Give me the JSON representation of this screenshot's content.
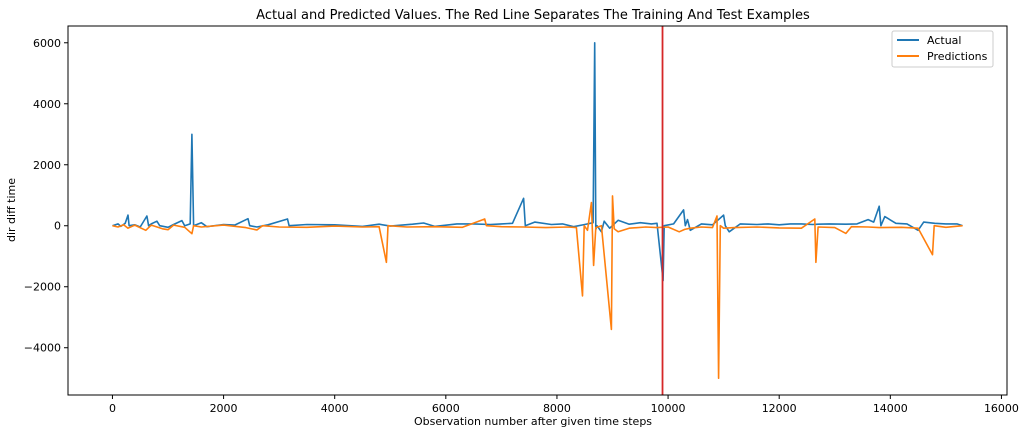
{
  "chart_data": {
    "type": "line",
    "title": "Actual and Predicted Values. The Red Line Separates The Training And Test Examples",
    "xlabel": "Observation number after given time steps",
    "ylabel": "dir diff time",
    "xlim": [
      -800,
      16100
    ],
    "ylim": [
      -5550,
      6550
    ],
    "xticks": [
      0,
      2000,
      4000,
      6000,
      8000,
      10000,
      12000,
      14000,
      16000
    ],
    "yticks": [
      -4000,
      -2000,
      0,
      2000,
      4000,
      6000
    ],
    "grid": false,
    "legend_position": "top-right",
    "split_line": {
      "x": 9900,
      "color": "#d62728"
    },
    "series": [
      {
        "name": "Actual",
        "color": "#1f77b4",
        "points": [
          [
            0,
            0
          ],
          [
            100,
            60
          ],
          [
            150,
            -20
          ],
          [
            230,
            80
          ],
          [
            280,
            350
          ],
          [
            300,
            0
          ],
          [
            400,
            30
          ],
          [
            500,
            -40
          ],
          [
            620,
            320
          ],
          [
            650,
            0
          ],
          [
            700,
            60
          ],
          [
            800,
            150
          ],
          [
            850,
            0
          ],
          [
            1000,
            -50
          ],
          [
            1100,
            40
          ],
          [
            1250,
            170
          ],
          [
            1300,
            0
          ],
          [
            1400,
            60
          ],
          [
            1430,
            3000
          ],
          [
            1460,
            0
          ],
          [
            1600,
            100
          ],
          [
            1700,
            -30
          ],
          [
            2000,
            40
          ],
          [
            2200,
            20
          ],
          [
            2440,
            230
          ],
          [
            2470,
            0
          ],
          [
            2600,
            -40
          ],
          [
            2800,
            30
          ],
          [
            3150,
            220
          ],
          [
            3180,
            0
          ],
          [
            3500,
            40
          ],
          [
            4000,
            30
          ],
          [
            4500,
            -20
          ],
          [
            4800,
            50
          ],
          [
            5000,
            -10
          ],
          [
            5400,
            50
          ],
          [
            5600,
            90
          ],
          [
            5800,
            -20
          ],
          [
            6200,
            60
          ],
          [
            6500,
            60
          ],
          [
            6800,
            40
          ],
          [
            7000,
            60
          ],
          [
            7200,
            80
          ],
          [
            7400,
            900
          ],
          [
            7430,
            0
          ],
          [
            7600,
            120
          ],
          [
            7900,
            40
          ],
          [
            8100,
            60
          ],
          [
            8300,
            -30
          ],
          [
            8500,
            40
          ],
          [
            8650,
            100
          ],
          [
            8680,
            6000
          ],
          [
            8700,
            -120
          ],
          [
            8720,
            0
          ],
          [
            8800,
            -200
          ],
          [
            8850,
            150
          ],
          [
            8950,
            -80
          ],
          [
            9100,
            180
          ],
          [
            9300,
            50
          ],
          [
            9500,
            100
          ],
          [
            9700,
            60
          ],
          [
            9800,
            80
          ],
          [
            9910,
            -1800
          ],
          [
            9930,
            0
          ],
          [
            10100,
            60
          ],
          [
            10280,
            520
          ],
          [
            10310,
            0
          ],
          [
            10350,
            200
          ],
          [
            10400,
            -150
          ],
          [
            10600,
            60
          ],
          [
            10800,
            30
          ],
          [
            11000,
            350
          ],
          [
            11030,
            0
          ],
          [
            11100,
            -200
          ],
          [
            11300,
            60
          ],
          [
            11600,
            40
          ],
          [
            11800,
            60
          ],
          [
            12000,
            30
          ],
          [
            12200,
            60
          ],
          [
            12400,
            60
          ],
          [
            12600,
            40
          ],
          [
            12700,
            50
          ],
          [
            12900,
            60
          ],
          [
            13200,
            50
          ],
          [
            13400,
            60
          ],
          [
            13600,
            200
          ],
          [
            13700,
            120
          ],
          [
            13800,
            640
          ],
          [
            13830,
            0
          ],
          [
            13900,
            300
          ],
          [
            14100,
            80
          ],
          [
            14300,
            60
          ],
          [
            14500,
            -150
          ],
          [
            14600,
            120
          ],
          [
            14800,
            80
          ],
          [
            15000,
            60
          ],
          [
            15200,
            60
          ],
          [
            15300,
            0
          ]
        ]
      },
      {
        "name": "Predictions",
        "color": "#ff7f0e",
        "points": [
          [
            0,
            0
          ],
          [
            100,
            -40
          ],
          [
            200,
            30
          ],
          [
            280,
            -80
          ],
          [
            400,
            20
          ],
          [
            600,
            -150
          ],
          [
            700,
            20
          ],
          [
            900,
            -100
          ],
          [
            1000,
            -130
          ],
          [
            1100,
            20
          ],
          [
            1300,
            -50
          ],
          [
            1430,
            -260
          ],
          [
            1460,
            0
          ],
          [
            1600,
            -40
          ],
          [
            2000,
            20
          ],
          [
            2400,
            -60
          ],
          [
            2600,
            -140
          ],
          [
            2700,
            0
          ],
          [
            3000,
            -40
          ],
          [
            3500,
            -50
          ],
          [
            4000,
            -10
          ],
          [
            4500,
            -40
          ],
          [
            4800,
            -30
          ],
          [
            4930,
            -1200
          ],
          [
            4960,
            0
          ],
          [
            5300,
            -40
          ],
          [
            5800,
            -30
          ],
          [
            6300,
            -50
          ],
          [
            6700,
            220
          ],
          [
            6730,
            0
          ],
          [
            7000,
            -30
          ],
          [
            7400,
            -40
          ],
          [
            7800,
            -60
          ],
          [
            8200,
            -40
          ],
          [
            8350,
            -60
          ],
          [
            8460,
            -2300
          ],
          [
            8490,
            0
          ],
          [
            8550,
            -150
          ],
          [
            8620,
            760
          ],
          [
            8660,
            -1300
          ],
          [
            8700,
            -60
          ],
          [
            8800,
            0
          ],
          [
            8980,
            -3400
          ],
          [
            9000,
            980
          ],
          [
            9030,
            -100
          ],
          [
            9100,
            -200
          ],
          [
            9300,
            -80
          ],
          [
            9600,
            -40
          ],
          [
            9800,
            -60
          ],
          [
            10000,
            -40
          ],
          [
            10200,
            -200
          ],
          [
            10300,
            -120
          ],
          [
            10400,
            -80
          ],
          [
            10600,
            -40
          ],
          [
            10800,
            -60
          ],
          [
            10880,
            320
          ],
          [
            10910,
            -5000
          ],
          [
            10940,
            0
          ],
          [
            11000,
            -80
          ],
          [
            11200,
            -60
          ],
          [
            11600,
            -40
          ],
          [
            12000,
            -70
          ],
          [
            12400,
            -80
          ],
          [
            12640,
            220
          ],
          [
            12660,
            -1200
          ],
          [
            12700,
            -40
          ],
          [
            13000,
            -60
          ],
          [
            13200,
            -250
          ],
          [
            13300,
            -30
          ],
          [
            13600,
            -40
          ],
          [
            13800,
            -60
          ],
          [
            14200,
            -50
          ],
          [
            14500,
            -80
          ],
          [
            14760,
            -950
          ],
          [
            14790,
            0
          ],
          [
            15000,
            -50
          ],
          [
            15300,
            0
          ]
        ]
      }
    ]
  }
}
